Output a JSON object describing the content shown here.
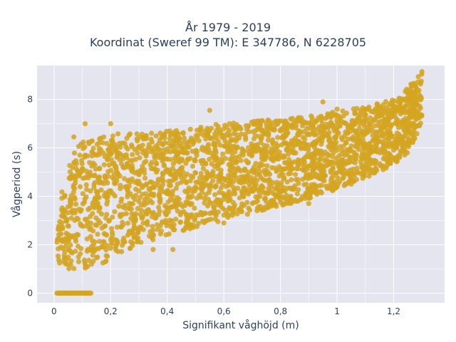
{
  "chart_data": {
    "type": "scatter",
    "title_lines": [
      "År 1979 - 2019",
      "Koordinat (Sweref 99 TM): E 347786, N 6228705"
    ],
    "xlabel": "Signifikant våghöjd (m)",
    "ylabel": "Vågperiod (s)",
    "xlim": [
      -0.06,
      1.38
    ],
    "ylim": [
      -0.4,
      9.4
    ],
    "xticks": [
      0,
      0.2,
      0.4,
      0.6,
      0.8,
      1,
      1.2
    ],
    "xtick_labels": [
      "0",
      "0,2",
      "0,4",
      "0,6",
      "0,8",
      "1",
      "1,2"
    ],
    "yticks": [
      0,
      2,
      4,
      6,
      8
    ],
    "ytick_labels": [
      "0",
      "2",
      "4",
      "6",
      "8"
    ],
    "grid": true,
    "marker_color": "#d4a520",
    "plot_background": "#e5e5f0",
    "series": [
      {
        "envelope_x": [
          0.01,
          0.03,
          0.05,
          0.08,
          0.1,
          0.15,
          0.2,
          0.3,
          0.4,
          0.5,
          0.6,
          0.7,
          0.8,
          0.9,
          1.0,
          1.1,
          1.2,
          1.25,
          1.3
        ],
        "envelope_y_low": [
          1.3,
          1.1,
          1.0,
          1.0,
          1.0,
          1.1,
          1.4,
          2.0,
          2.4,
          2.7,
          3.0,
          3.3,
          3.6,
          3.9,
          4.3,
          4.7,
          5.3,
          5.8,
          7.0
        ],
        "envelope_y_high": [
          3.0,
          4.5,
          5.2,
          6.0,
          6.3,
          6.5,
          6.6,
          6.6,
          6.7,
          6.9,
          7.0,
          7.1,
          7.2,
          7.3,
          7.5,
          7.7,
          8.0,
          8.5,
          9.2
        ],
        "zero_period_x": [
          0.01,
          0.13
        ],
        "outliers": [
          {
            "x": 0.07,
            "y": 6.45
          },
          {
            "x": 0.11,
            "y": 7.0
          },
          {
            "x": 0.2,
            "y": 7.0
          },
          {
            "x": 0.55,
            "y": 7.55
          },
          {
            "x": 0.62,
            "y": 7.0
          },
          {
            "x": 0.95,
            "y": 7.9
          },
          {
            "x": 1.0,
            "y": 7.6
          },
          {
            "x": 1.3,
            "y": 9.15
          },
          {
            "x": 0.2,
            "y": 1.85
          },
          {
            "x": 0.35,
            "y": 1.8
          },
          {
            "x": 0.42,
            "y": 1.8
          },
          {
            "x": 0.6,
            "y": 2.9
          },
          {
            "x": 0.9,
            "y": 3.7
          },
          {
            "x": 1.0,
            "y": 4.4
          },
          {
            "x": 1.05,
            "y": 4.5
          }
        ]
      }
    ]
  }
}
